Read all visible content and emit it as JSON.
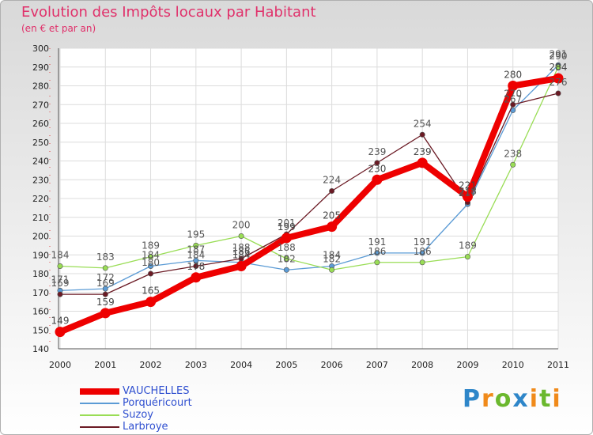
{
  "chart_data": {
    "type": "line",
    "title": "Evolution des Impôts locaux par Habitant",
    "subtitle": "(en € et par an)",
    "xlabel": "",
    "ylabel": "",
    "categories": [
      "2000",
      "2001",
      "2002",
      "2003",
      "2004",
      "2005",
      "2006",
      "2007",
      "2008",
      "2009",
      "2010",
      "2011"
    ],
    "yticks": [
      "140",
      "150",
      "160",
      "170",
      "180",
      "190",
      "200",
      "210",
      "220",
      "230",
      "240",
      "250",
      "260",
      "270",
      "280",
      "290",
      "300"
    ],
    "ylim": [
      140,
      300
    ],
    "series": [
      {
        "name": "Porquéricourt",
        "color": "#5b9bd5",
        "values": [
          171,
          172,
          184,
          187,
          186,
          182,
          184,
          191,
          191,
          217,
          267,
          291
        ]
      },
      {
        "name": "Suzoy",
        "color": "#99dd55",
        "values": [
          184,
          183,
          189,
          195,
          200,
          188,
          182,
          186,
          186,
          189,
          238,
          290
        ]
      },
      {
        "name": "Larbroye",
        "color": "#6b1a24",
        "values": [
          169,
          169,
          180,
          184,
          188,
          201,
          224,
          239,
          254,
          218,
          270,
          276
        ]
      },
      {
        "name": "VAUCHELLES",
        "color": "#ee0000",
        "values": [
          149,
          159,
          165,
          178,
          184,
          199,
          205,
          230,
          239,
          221,
          280,
          284
        ]
      }
    ],
    "legend": [
      {
        "name": "VAUCHELLES",
        "color": "#ee0000"
      },
      {
        "name": "Porquéricourt",
        "color": "#5b9bd5"
      },
      {
        "name": "Suzoy",
        "color": "#99dd55"
      },
      {
        "name": "Larbroye",
        "color": "#6b1a24"
      }
    ]
  },
  "brand": {
    "letters": [
      "P",
      "r",
      "o",
      "x",
      "i",
      "t",
      "i"
    ],
    "colors": [
      "#2e86c9",
      "#f08a1a",
      "#6bb82e",
      "#2e86c9",
      "#f08a1a",
      "#6bb82e",
      "#f08a1a"
    ]
  }
}
